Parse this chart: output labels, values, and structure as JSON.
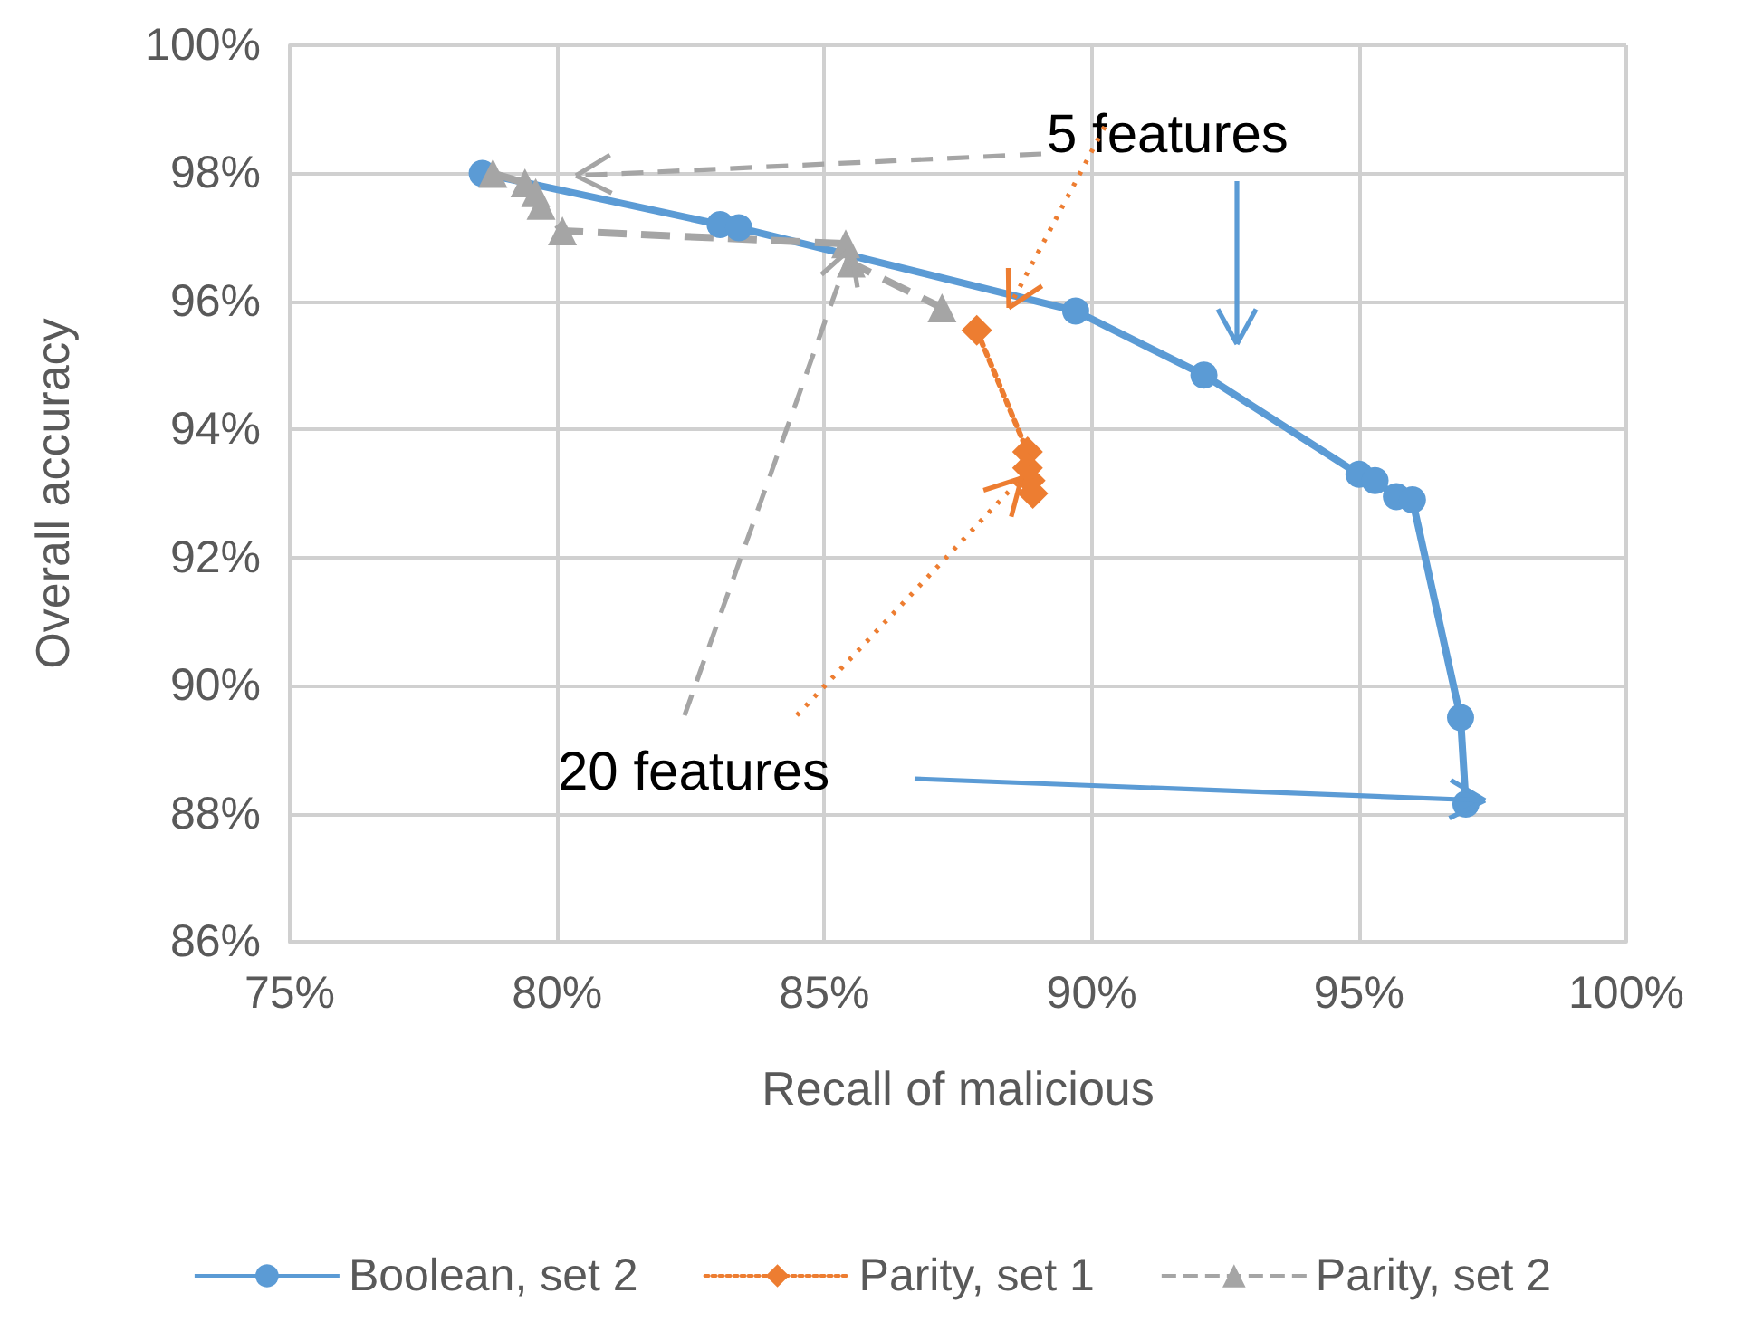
{
  "chart_data": {
    "type": "line",
    "xlabel": "Recall of malicious",
    "ylabel": "Overall accuracy",
    "xlim": [
      75,
      100
    ],
    "ylim": [
      86,
      100
    ],
    "xticks": [
      {
        "value": 75,
        "label": "75%"
      },
      {
        "value": 80,
        "label": "80%"
      },
      {
        "value": 85,
        "label": "85%"
      },
      {
        "value": 90,
        "label": "90%"
      },
      {
        "value": 95,
        "label": "95%"
      },
      {
        "value": 100,
        "label": "100%"
      }
    ],
    "yticks": [
      {
        "value": 86,
        "label": "86%"
      },
      {
        "value": 88,
        "label": "88%"
      },
      {
        "value": 90,
        "label": "90%"
      },
      {
        "value": 92,
        "label": "92%"
      },
      {
        "value": 94,
        "label": "94%"
      },
      {
        "value": 96,
        "label": "96%"
      },
      {
        "value": 98,
        "label": "98%"
      },
      {
        "value": 100,
        "label": "100%"
      }
    ],
    "grid": true,
    "legend": "bottom",
    "annotations": [
      "5 features",
      "20 features"
    ],
    "series": [
      {
        "name": "Boolean, set 2",
        "color": "#5b9bd5",
        "marker": "circle",
        "line_style": "solid",
        "x": [
          78.6,
          83.05,
          83.4,
          89.7,
          92.1,
          95.0,
          95.3,
          95.7,
          96.0,
          96.9,
          97.0
        ],
        "values": [
          98.0,
          97.2,
          97.15,
          95.85,
          94.85,
          93.3,
          93.2,
          92.95,
          92.9,
          89.5,
          88.15
        ]
      },
      {
        "name": "Parity, set 1",
        "color": "#ed7d31",
        "marker": "diamond",
        "line_style": "dotted",
        "x": [
          87.85,
          88.8,
          88.8,
          88.85,
          88.9
        ],
        "values": [
          95.55,
          93.65,
          93.4,
          93.2,
          93.0
        ]
      },
      {
        "name": "Parity, set 2",
        "color": "#a5a5a5",
        "marker": "triangle",
        "line_style": "dashed",
        "x": [
          78.8,
          79.4,
          79.6,
          79.7,
          80.1,
          85.4,
          85.5,
          87.2
        ],
        "values": [
          98.0,
          97.85,
          97.7,
          97.5,
          97.1,
          96.9,
          96.6,
          95.9
        ]
      }
    ]
  }
}
